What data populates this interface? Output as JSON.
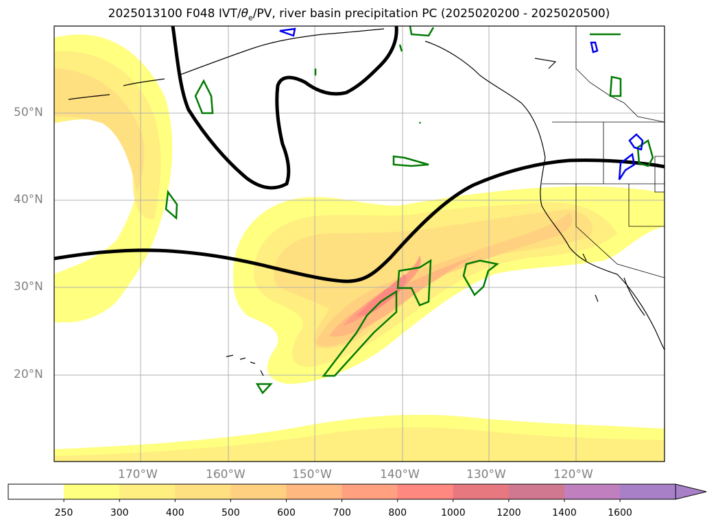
{
  "title": {
    "prefix": "2025013100 F048 IVT/",
    "theta": "θ",
    "theta_sub": "e",
    "suffix": "/PV, river basin precipitation PC (2025020200 - 2025020500)"
  },
  "lat_labels": [
    "50°N",
    "40°N",
    "30°N",
    "20°N"
  ],
  "lon_labels": [
    "170°W",
    "160°W",
    "150°W",
    "140°W",
    "130°W",
    "120°W"
  ],
  "colorbar": {
    "ticks": [
      "250",
      "300",
      "400",
      "500",
      "600",
      "700",
      "800",
      "1000",
      "1200",
      "1400",
      "1600"
    ],
    "colors": [
      "#ffffff",
      "#ffff80",
      "#ffee80",
      "#ffe080",
      "#ffd080",
      "#ffb880",
      "#ffa080",
      "#ff8880",
      "#e87880",
      "#d07890",
      "#c080c0",
      "#a880c8"
    ]
  }
}
